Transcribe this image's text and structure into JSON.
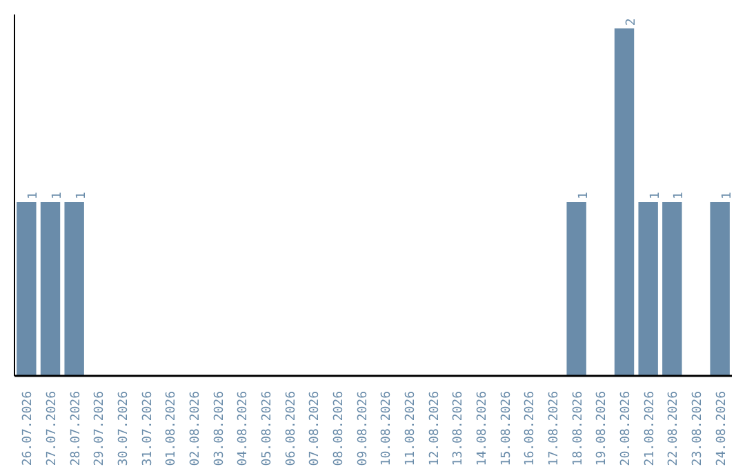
{
  "chart_data": {
    "type": "bar",
    "categories": [
      "26.07.2026",
      "27.07.2026",
      "28.07.2026",
      "29.07.2026",
      "30.07.2026",
      "31.07.2026",
      "01.08.2026",
      "02.08.2026",
      "03.08.2026",
      "04.08.2026",
      "05.08.2026",
      "06.08.2026",
      "07.08.2026",
      "08.08.2026",
      "09.08.2026",
      "10.08.2026",
      "11.08.2026",
      "12.08.2026",
      "13.08.2026",
      "14.08.2026",
      "15.08.2026",
      "16.08.2026",
      "17.08.2026",
      "18.08.2026",
      "19.08.2026",
      "20.08.2026",
      "21.08.2026",
      "22.08.2026",
      "23.08.2026",
      "24.08.2026"
    ],
    "values": [
      1,
      1,
      1,
      0,
      0,
      0,
      0,
      0,
      0,
      0,
      0,
      0,
      0,
      0,
      0,
      0,
      0,
      0,
      0,
      0,
      0,
      0,
      0,
      1,
      0,
      2,
      1,
      1,
      0,
      1
    ],
    "value_labels": [
      "1",
      "1",
      "1",
      null,
      null,
      null,
      null,
      null,
      null,
      null,
      null,
      null,
      null,
      null,
      null,
      null,
      null,
      null,
      null,
      null,
      null,
      null,
      null,
      "1",
      null,
      "2",
      "1",
      "1",
      null,
      "1"
    ],
    "color": "#6a8caa",
    "tick_labels": "x",
    "grid": false
  }
}
